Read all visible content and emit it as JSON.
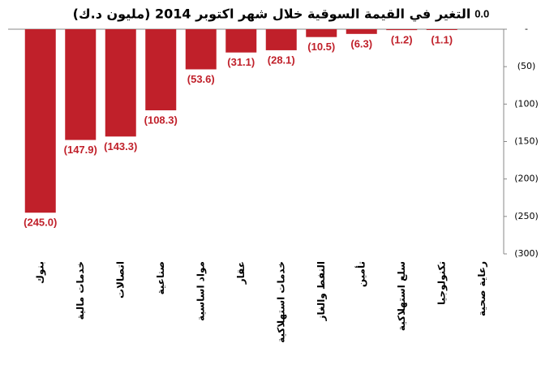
{
  "chart_data": {
    "type": "bar",
    "title": "التغير في القيمة السوقية خلال شهر اكتوبر 2014 (مليون د.ك)",
    "categories": [
      "بنوك",
      "خدمات مالية",
      "اتصالات",
      "صناعية",
      "مواد اساسية",
      "عقار",
      "خدمات استهلاكية",
      "النفط والغاز",
      "تأمين",
      "سلع استهلاكية",
      "تكنولوجيا",
      "رعاية صحية"
    ],
    "values": [
      -245.0,
      -147.9,
      -143.3,
      -108.3,
      -53.6,
      -31.1,
      -28.1,
      -10.5,
      -6.3,
      -1.2,
      -1.1,
      0.0
    ],
    "value_labels": [
      "(245.0)",
      "(147.9)",
      "(143.3)",
      "(108.3)",
      "(53.6)",
      "(31.1)",
      "(28.1)",
      "(10.5)",
      "(6.3)",
      "(1.2)",
      "(1.1)",
      "0.0"
    ],
    "color": "#c0202a",
    "ylim": [
      -300,
      0
    ],
    "yticks": [
      {
        "value": 0,
        "label": "-"
      },
      {
        "value": -50,
        "label": "(50)"
      },
      {
        "value": -100,
        "label": "(100)"
      },
      {
        "value": -150,
        "label": "(150)"
      },
      {
        "value": -200,
        "label": "(200)"
      },
      {
        "value": -250,
        "label": "(250)"
      },
      {
        "value": -300,
        "label": "(300)"
      }
    ],
    "grid": false
  }
}
